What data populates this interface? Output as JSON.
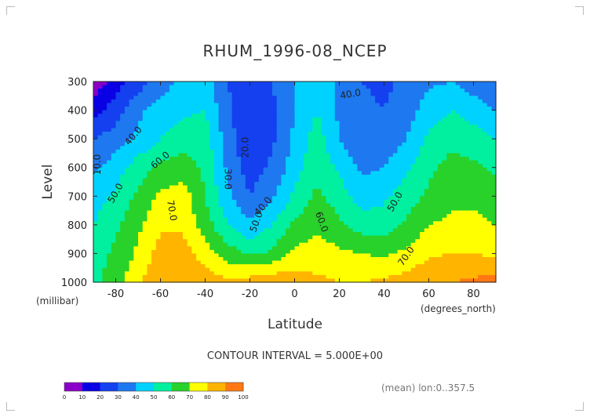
{
  "chart_data": {
    "type": "heatmap",
    "title": "RHUM_1996-08_NCEP",
    "xlabel": "Latitude",
    "ylabel": "Level",
    "y_unit": "(millibar)",
    "x_unit": "(degrees_north)",
    "xlim": [
      -90,
      90
    ],
    "ylim": [
      1000,
      300
    ],
    "x_ticks": [
      -80,
      -60,
      -40,
      -20,
      0,
      20,
      40,
      60,
      80
    ],
    "x_tick_labels": [
      "-80",
      "-60",
      "-40",
      "-20",
      "0",
      "20",
      "40",
      "60",
      "80"
    ],
    "y_ticks": [
      300,
      400,
      500,
      600,
      700,
      800,
      900,
      1000
    ],
    "y_tick_labels": [
      "300",
      "400",
      "500",
      "600",
      "700",
      "800",
      "900",
      "1000"
    ],
    "contour_interval_text": "CONTOUR INTERVAL = 5.000E+00",
    "footnote": "(mean) lon:0..357.5",
    "x": [
      -90,
      -80,
      -70,
      -60,
      -50,
      -40,
      -30,
      -20,
      -10,
      0,
      10,
      20,
      30,
      40,
      50,
      60,
      70,
      80,
      90
    ],
    "y": [
      300,
      400,
      500,
      600,
      700,
      800,
      900,
      1000
    ],
    "z": [
      [
        3,
        15,
        25,
        35,
        42,
        45,
        30,
        25,
        30,
        40,
        45,
        38,
        30,
        28,
        32,
        38,
        40,
        35,
        30
      ],
      [
        15,
        25,
        38,
        45,
        48,
        50,
        32,
        22,
        28,
        40,
        50,
        38,
        32,
        30,
        35,
        45,
        50,
        45,
        40
      ],
      [
        30,
        35,
        42,
        50,
        55,
        55,
        35,
        20,
        28,
        42,
        55,
        40,
        32,
        33,
        40,
        52,
        58,
        55,
        50
      ],
      [
        38,
        45,
        55,
        62,
        65,
        58,
        38,
        25,
        32,
        45,
        58,
        48,
        38,
        40,
        48,
        58,
        63,
        62,
        58
      ],
      [
        45,
        52,
        62,
        72,
        75,
        60,
        42,
        30,
        38,
        52,
        62,
        55,
        45,
        48,
        55,
        62,
        68,
        68,
        65
      ],
      [
        50,
        58,
        68,
        78,
        78,
        65,
        50,
        42,
        50,
        62,
        68,
        62,
        55,
        55,
        62,
        70,
        72,
        72,
        70
      ],
      [
        55,
        62,
        72,
        85,
        85,
        75,
        65,
        58,
        62,
        72,
        75,
        72,
        70,
        68,
        72,
        78,
        80,
        80,
        78
      ],
      [
        58,
        65,
        78,
        88,
        90,
        85,
        82,
        85,
        88,
        85,
        82,
        80,
        80,
        82,
        85,
        88,
        90,
        92,
        95
      ]
    ],
    "contour_labels": [
      {
        "text": "10.0",
        "x": -88,
        "y": 590,
        "rotate": -90
      },
      {
        "text": "40.0",
        "x": -72,
        "y": 490,
        "rotate": -50
      },
      {
        "text": "60.0",
        "x": -60,
        "y": 575,
        "rotate": -40
      },
      {
        "text": "50.0",
        "x": -80,
        "y": 690,
        "rotate": -60
      },
      {
        "text": "70.0",
        "x": -55,
        "y": 750,
        "rotate": 80
      },
      {
        "text": "20.0",
        "x": -22,
        "y": 530,
        "rotate": -90
      },
      {
        "text": "30.0",
        "x": -30,
        "y": 640,
        "rotate": 90
      },
      {
        "text": "40.0",
        "x": -14,
        "y": 735,
        "rotate": -50
      },
      {
        "text": "50.0",
        "x": -17,
        "y": 790,
        "rotate": -70
      },
      {
        "text": "60.0",
        "x": 12,
        "y": 790,
        "rotate": 70
      },
      {
        "text": "40.0",
        "x": 25,
        "y": 345,
        "rotate": -10
      },
      {
        "text": "50.0",
        "x": 45,
        "y": 720,
        "rotate": -60
      },
      {
        "text": "70.0",
        "x": 50,
        "y": 910,
        "rotate": -55
      }
    ],
    "colorbar": {
      "ticks": [
        "0",
        "10",
        "20",
        "30",
        "40",
        "50",
        "60",
        "70",
        "80",
        "90",
        "100"
      ],
      "colors": [
        "#8b00c8",
        "#0a00e6",
        "#1440f0",
        "#1e78f0",
        "#00d2ff",
        "#00f0a0",
        "#28d22a",
        "#ffff00",
        "#ffb400",
        "#ff7814",
        "#ff3c28"
      ]
    },
    "grid": false,
    "legend": "bottom-left colorbar"
  }
}
